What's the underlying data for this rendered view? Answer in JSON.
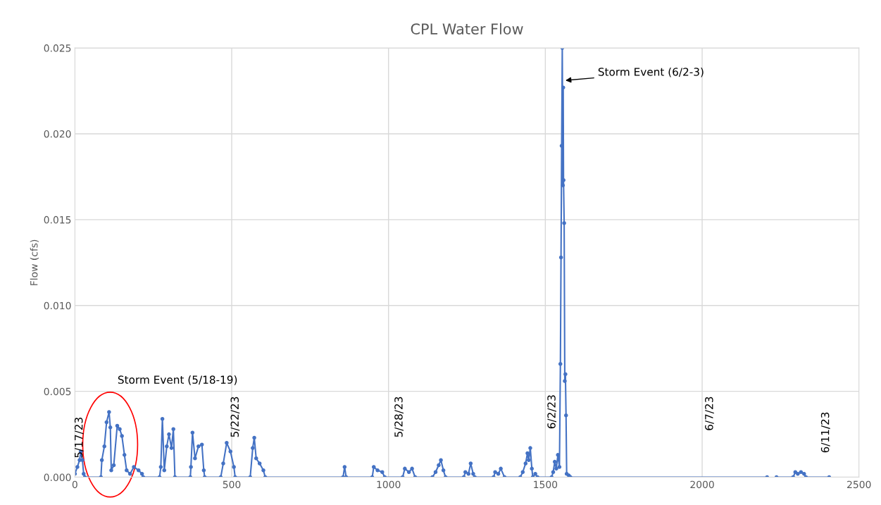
{
  "chart_data": {
    "type": "line",
    "title": "CPL Water Flow",
    "ylabel": "Flow (cfs)",
    "x": [
      0,
      8,
      15,
      19,
      24,
      28,
      32,
      83,
      86,
      94,
      101,
      109,
      113,
      116,
      124,
      135,
      143,
      150,
      158,
      165,
      176,
      188,
      203,
      214,
      218,
      270,
      274,
      279,
      285,
      293,
      300,
      308,
      314,
      319,
      368,
      370,
      375,
      383,
      394,
      405,
      411,
      414,
      465,
      473,
      484,
      496,
      507,
      511,
      559,
      567,
      572,
      578,
      589,
      601,
      607,
      855,
      860,
      865,
      948,
      953,
      965,
      980,
      988,
      1045,
      1052,
      1065,
      1075,
      1085,
      1140,
      1150,
      1160,
      1167,
      1175,
      1182,
      1240,
      1245,
      1255,
      1262,
      1270,
      1275,
      1335,
      1340,
      1350,
      1358,
      1370,
      1420,
      1428,
      1437,
      1443,
      1447,
      1452,
      1457,
      1460,
      1468,
      1475,
      1520,
      1525,
      1530,
      1535,
      1540,
      1545,
      1548,
      1550,
      1552,
      1554,
      1556,
      1557,
      1558,
      1560,
      1562,
      1564,
      1566,
      1568,
      1575,
      1580,
      2207,
      2215,
      2237,
      2290,
      2297,
      2305,
      2315,
      2325,
      2331,
      2405
    ],
    "series": [
      {
        "color": "#4472c4",
        "values": [
          0.0002,
          0.0006,
          0.001,
          0.0015,
          0.001,
          0.0002,
          0,
          0,
          0.001,
          0.0018,
          0.0032,
          0.0038,
          0.0029,
          0.0004,
          0.0007,
          0.003,
          0.0028,
          0.0024,
          0.0013,
          0.0004,
          0.0002,
          0.0006,
          0.0004,
          0.0002,
          0,
          0,
          0.0006,
          0.0034,
          0.0004,
          0.0018,
          0.0025,
          0.0017,
          0.0028,
          0,
          0,
          0.0006,
          0.0026,
          0.0011,
          0.0018,
          0.0019,
          0.0004,
          0,
          0,
          0.0008,
          0.002,
          0.0015,
          0.0006,
          0,
          0,
          0.0017,
          0.0023,
          0.0011,
          0.0008,
          0.0004,
          0,
          0,
          0.0006,
          0,
          0,
          0.0006,
          0.0004,
          0.0003,
          0,
          0,
          0.0005,
          0.0003,
          0.0005,
          0,
          0,
          0.0003,
          0.0007,
          0.001,
          0.0004,
          0,
          0,
          0.0003,
          0.0002,
          0.0008,
          0.0002,
          0,
          0,
          0.0003,
          0.0002,
          0.0005,
          0,
          0,
          0.0003,
          0.0008,
          0.0014,
          0.001,
          0.0017,
          0.0005,
          0,
          0.0002,
          0,
          0,
          0.0003,
          0.0009,
          0.0005,
          0.0013,
          0.0006,
          0.0066,
          0.0128,
          0.0193,
          0.025,
          0.017,
          0.0227,
          0.0173,
          0.0148,
          0.0056,
          0.006,
          0.0036,
          0.0002,
          0.0001,
          0,
          0,
          null,
          0,
          0,
          0.0003,
          0.0002,
          0.0003,
          0.0002,
          0,
          0
        ]
      }
    ],
    "xlim": [
      0,
      2500
    ],
    "xticks": [
      0,
      500,
      1000,
      1500,
      2000,
      2500
    ],
    "ylim": [
      0,
      0.025
    ],
    "yticks": [
      {
        "value": 0,
        "label": "0.000"
      },
      {
        "value": 0.005,
        "label": "0.005"
      },
      {
        "value": 0.01,
        "label": "0.010"
      },
      {
        "value": 0.015,
        "label": "0.015"
      },
      {
        "value": 0.02,
        "label": "0.020"
      },
      {
        "value": 0.025,
        "label": "0.025"
      }
    ],
    "grid": true,
    "marker": "circle",
    "line_style": "solid",
    "annotations": [
      "5/17/23",
      "5/22/23",
      "5/28/23",
      "6/2/23",
      "6/7/23",
      "6/11/23",
      "Storm Event (5/18-19)",
      {
        "text": "Storm Event (6/2-3)",
        "x": 1558,
        "y": 0.0231
      }
    ]
  }
}
